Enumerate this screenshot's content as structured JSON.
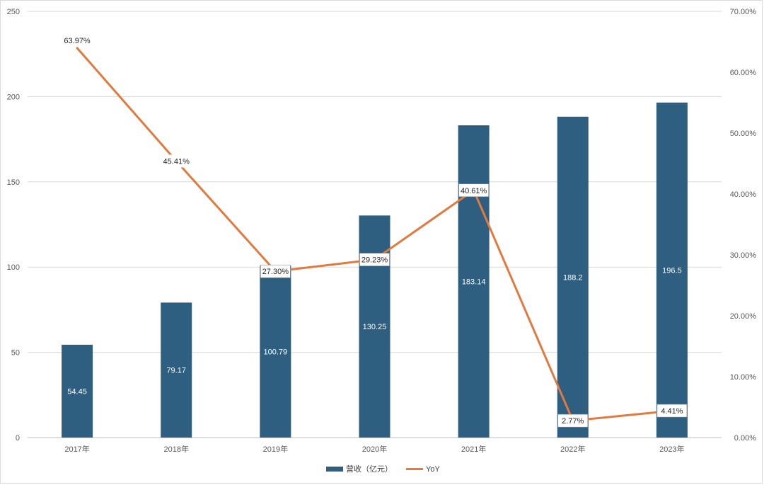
{
  "chart_data": {
    "type": "bar",
    "categories": [
      "2017年",
      "2018年",
      "2019年",
      "2020年",
      "2021年",
      "2022年",
      "2023年"
    ],
    "series": [
      {
        "name": "营收（亿元）",
        "type": "bar",
        "axis": "left",
        "values": [
          54.45,
          79.17,
          100.79,
          130.25,
          183.14,
          188.2,
          196.5
        ],
        "labels": [
          "54.45",
          "79.17",
          "100.79",
          "130.25",
          "183.14",
          "188.2",
          "196.5"
        ],
        "color": "#2e5f80"
      },
      {
        "name": "YoY",
        "type": "line",
        "axis": "right",
        "values": [
          63.97,
          45.41,
          27.3,
          29.23,
          40.61,
          2.77,
          4.41
        ],
        "labels": [
          "63.97%",
          "45.41%",
          "27.30%",
          "29.23%",
          "40.61%",
          "2.77%",
          "4.41%"
        ],
        "color": "#e07a3f"
      }
    ],
    "ylim_left": [
      0,
      250
    ],
    "yticks_left": [
      "0",
      "50",
      "100",
      "150",
      "200",
      "250"
    ],
    "ylim_right": [
      0,
      70
    ],
    "yticks_right": [
      "0.00%",
      "10.00%",
      "20.00%",
      "30.00%",
      "40.00%",
      "50.00%",
      "60.00%",
      "70.00%"
    ],
    "grid": true,
    "legend": "bottom"
  }
}
